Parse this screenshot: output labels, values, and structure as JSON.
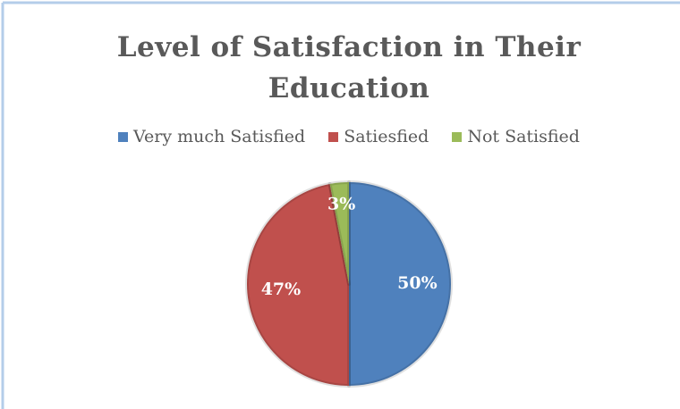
{
  "chart_data": {
    "type": "pie",
    "title": "Level of Satisfaction in Their Education",
    "categories": [
      "Very much Satisfied",
      "Satiesfied",
      "Not Satisfied"
    ],
    "values": [
      50,
      47,
      3
    ],
    "value_labels": [
      "50%",
      "47%",
      "3%"
    ],
    "colors": [
      "#4f81bd",
      "#c0504d",
      "#9bbb59"
    ],
    "legend": "top"
  }
}
